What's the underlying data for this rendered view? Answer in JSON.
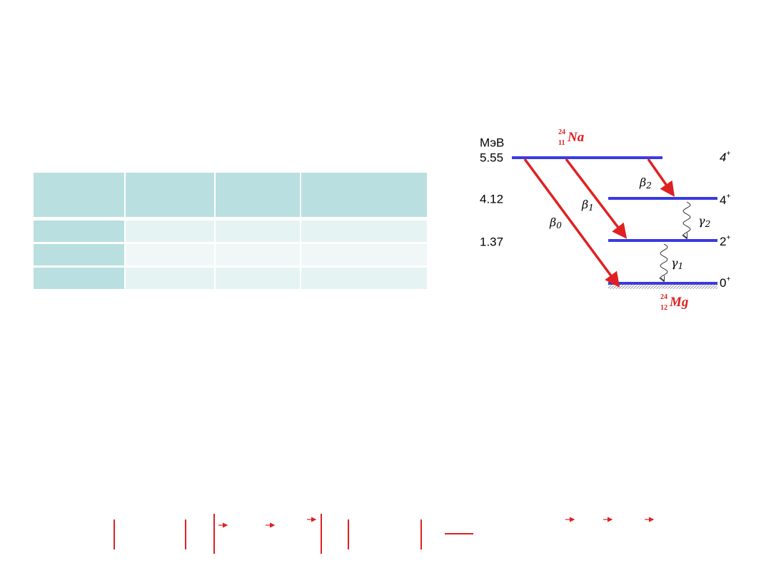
{
  "diagram": {
    "unit": "МэВ",
    "parent": {
      "mass": 24,
      "charge": 11,
      "symbol": "Na"
    },
    "daughter": {
      "mass": 24,
      "charge": 12,
      "symbol": "Mg"
    },
    "levels": [
      {
        "energy": 5.55,
        "spin": "4",
        "parity": "+"
      },
      {
        "energy": 4.12,
        "spin": "4",
        "parity": "+"
      },
      {
        "energy": 1.37,
        "spin": "2",
        "parity": "+"
      },
      {
        "spin": "0",
        "parity": "+"
      }
    ],
    "beta": [
      {
        "symbol": "β",
        "index": "0"
      },
      {
        "symbol": "β",
        "index": "1"
      },
      {
        "symbol": "β",
        "index": "2"
      }
    ],
    "gamma": [
      {
        "symbol": "γ",
        "index": "1"
      },
      {
        "symbol": "γ",
        "index": "2"
      }
    ]
  }
}
